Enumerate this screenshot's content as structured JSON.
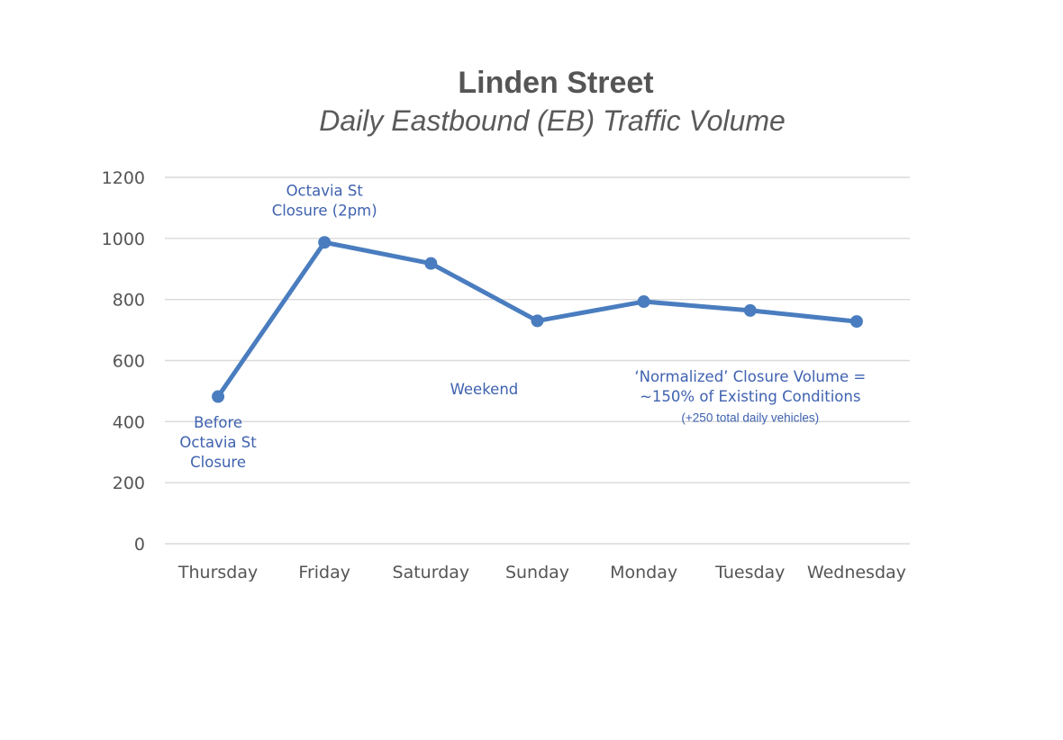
{
  "chart_data": {
    "type": "line",
    "title": "Linden Street",
    "subtitle": "Daily Eastbound (EB) Traffic Volume",
    "xlabel": "",
    "ylabel": "",
    "categories": [
      "Thursday",
      "Friday",
      "Saturday",
      "Sunday",
      "Monday",
      "Tuesday",
      "Wednesday"
    ],
    "series": [
      {
        "values": [
          482,
          987,
          918,
          730,
          793,
          764,
          728
        ],
        "color": "#4a7dbf"
      }
    ],
    "ylim": [
      0,
      1200
    ],
    "yticks": [
      "0",
      "200",
      "400",
      "600",
      "800",
      "1000",
      "1200"
    ],
    "grid": true,
    "legend": "none",
    "annotations": [
      {
        "id": "before",
        "lines": [
          "Before",
          "Octavia St",
          "Closure"
        ],
        "anchor_category": "Thursday",
        "anchor_value": 380,
        "size": "normal"
      },
      {
        "id": "closure",
        "lines": [
          "Octavia St",
          "Closure (2pm)"
        ],
        "anchor_category": "Friday",
        "anchor_value": 1140,
        "size": "normal"
      },
      {
        "id": "weekend",
        "lines": [
          "Weekend"
        ],
        "anchor_category": "Saturday",
        "anchor_value": 490,
        "offset_categories": 0.5,
        "size": "normal"
      },
      {
        "id": "normalized",
        "lines": [
          "‘Normalized’ Closure Volume =",
          "~150% of Existing Conditions"
        ],
        "anchor_category": "Tuesday",
        "anchor_value": 530,
        "size": "normal"
      },
      {
        "id": "normalized-note",
        "lines": [
          "(+250 total daily vehicles)"
        ],
        "anchor_category": "Tuesday",
        "anchor_value": 400,
        "size": "small"
      }
    ]
  }
}
